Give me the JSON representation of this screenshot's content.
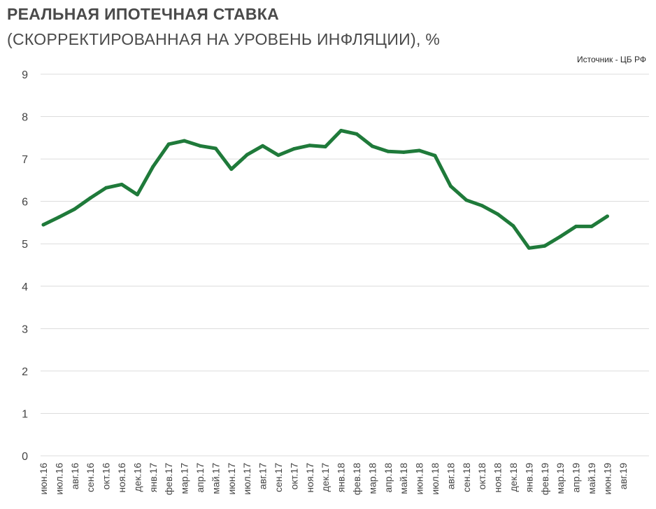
{
  "chart_data": {
    "type": "line",
    "title": "РЕАЛЬНАЯ ИПОТЕЧНАЯ СТАВКА",
    "subtitle": "(СКОРРЕКТИРОВАННАЯ НА УРОВЕНЬ  ИНФЛЯЦИИ), %",
    "source": "Источник  - ЦБ РФ",
    "xlabel": "",
    "ylabel": "",
    "ylim": [
      0,
      9
    ],
    "yticks": [
      "0",
      "1",
      "2",
      "3",
      "4",
      "5",
      "6",
      "7",
      "8",
      "9"
    ],
    "grid": true,
    "line_color": "#1f7a3a",
    "categories": [
      "июн.16",
      "июл.16",
      "авг.16",
      "сен.16",
      "окт.16",
      "ноя.16",
      "дек.16",
      "янв.17",
      "фев.17",
      "мар.17",
      "апр.17",
      "май.17",
      "июн.17",
      "июл.17",
      "авг.17",
      "сен.17",
      "окт.17",
      "ноя.17",
      "дек.17",
      "янв.18",
      "фев.18",
      "мар.18",
      "апр.18",
      "май.18",
      "июн.18",
      "июл.18",
      "авг.18",
      "сен.18",
      "окт.18",
      "ноя.18",
      "дек.18",
      "янв.19",
      "фев.19",
      "мар.19",
      "апр.19",
      "май.19",
      "июн.19",
      "авг.19"
    ],
    "series": [
      {
        "values": [
          5.45,
          5.63,
          5.82,
          6.08,
          6.32,
          6.4,
          6.16,
          6.82,
          7.35,
          7.43,
          7.31,
          7.25,
          6.76,
          7.1,
          7.31,
          7.09,
          7.24,
          7.32,
          7.29,
          7.67,
          7.59,
          7.3,
          7.18,
          7.16,
          7.2,
          7.08,
          6.36,
          6.03,
          5.9,
          5.7,
          5.42,
          4.9,
          4.95,
          5.17,
          5.41,
          5.41,
          5.65,
          null
        ]
      }
    ]
  }
}
